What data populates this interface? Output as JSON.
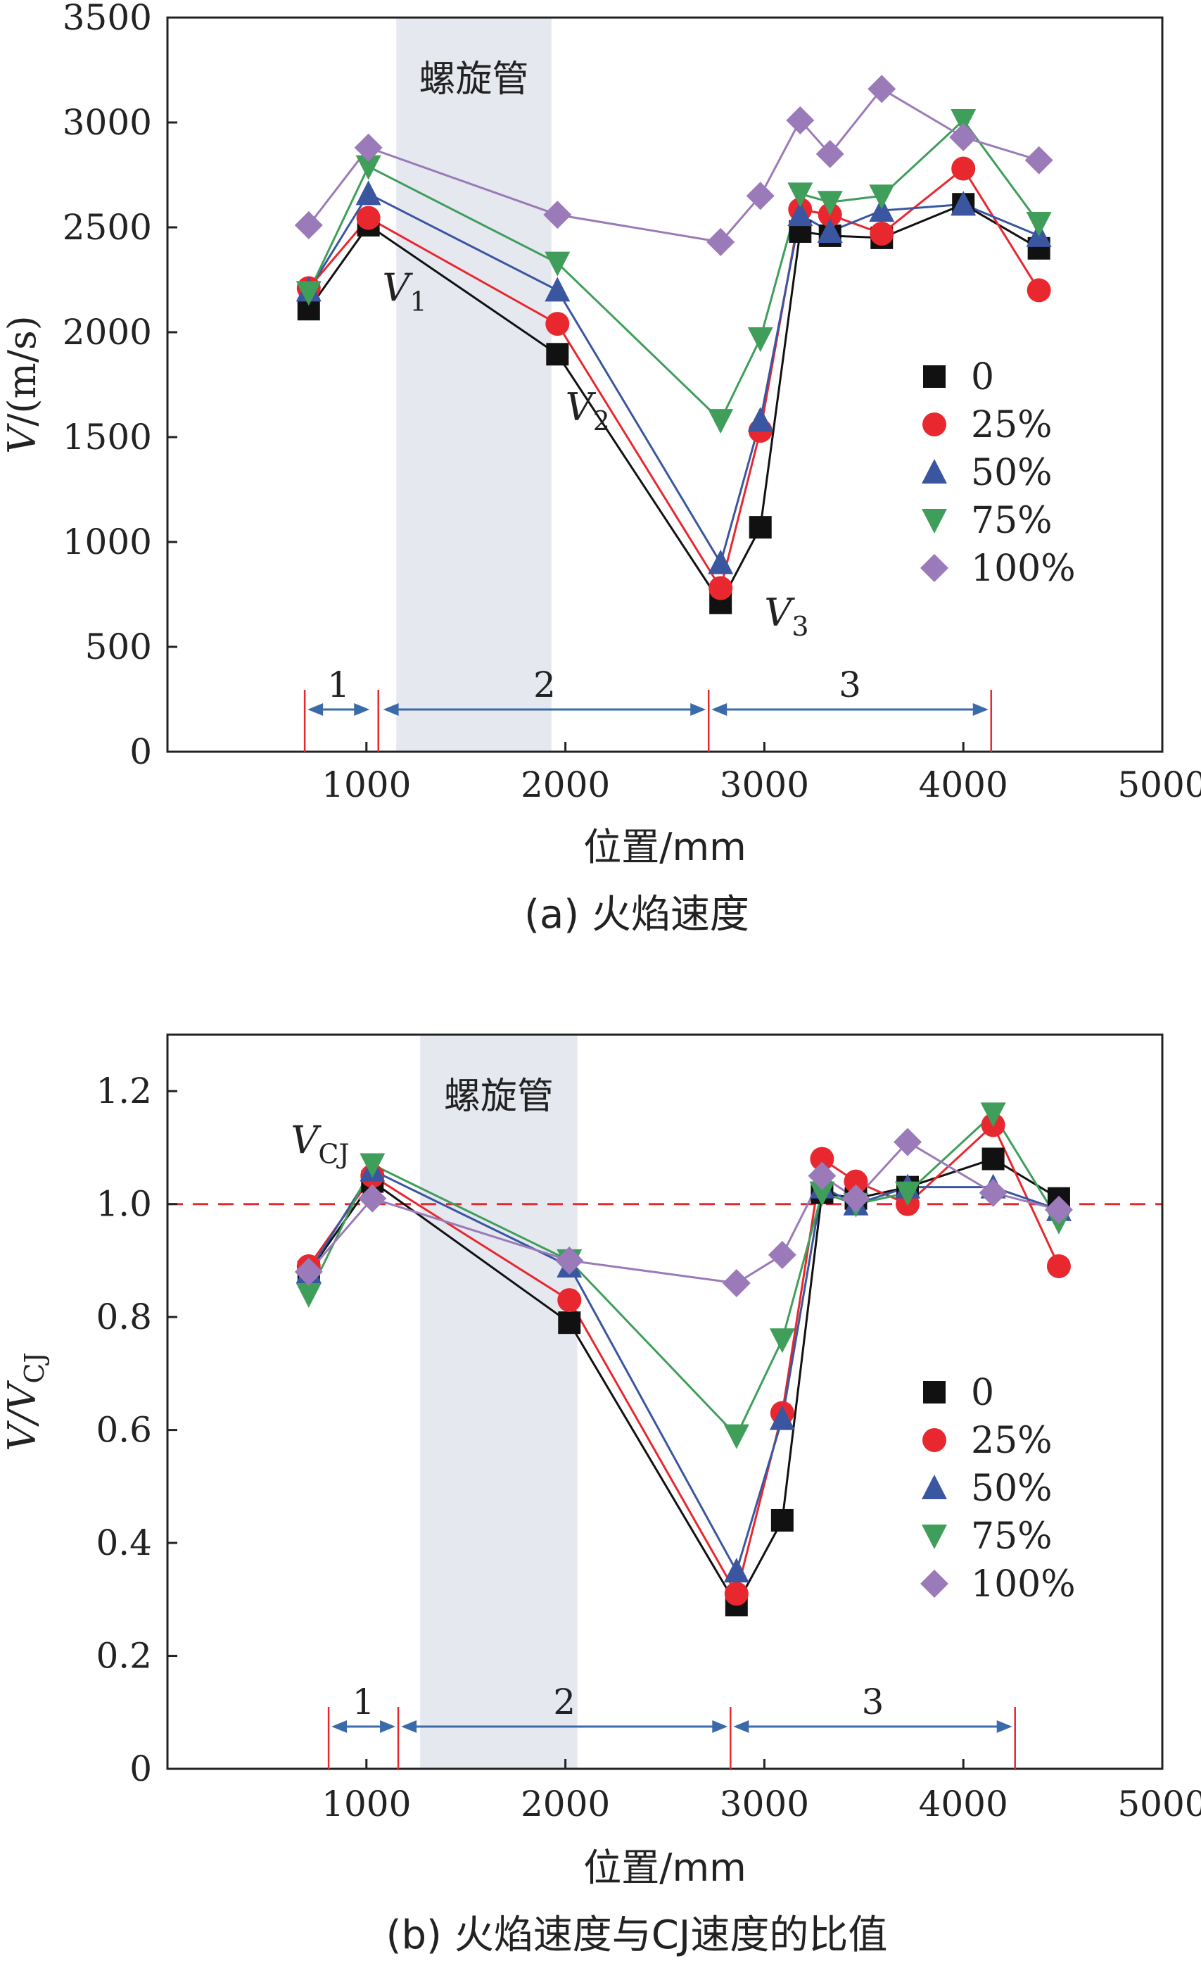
{
  "chart_data": [
    {
      "type": "line",
      "caption": "(a) 火焰速度",
      "xlabel": "位置/mm",
      "ylabel": "V/(m/s)",
      "ylabel_italic": "V",
      "ylabel_rest": "/(m/s)",
      "xlim": [
        0,
        5000
      ],
      "ylim": [
        0,
        3500
      ],
      "xticks": [
        "1000",
        "2000",
        "3000",
        "4000",
        "5000"
      ],
      "yticks": [
        "0",
        "500",
        "1000",
        "1500",
        "2000",
        "2500",
        "3000",
        "3500"
      ],
      "shaded_region": {
        "label": "螺旋管",
        "x_range": [
          1150,
          1930
        ]
      },
      "sections": [
        {
          "label": "1",
          "x_range": [
            690,
            1030
          ]
        },
        {
          "label": "2",
          "x_range": [
            1070,
            2720
          ]
        },
        {
          "label": "3",
          "x_range": [
            2720,
            4140
          ]
        }
      ],
      "section_markers": [
        690,
        1060,
        2720,
        4140
      ],
      "annotations": [
        {
          "base": "V",
          "sub": "1",
          "x": 1080,
          "y": 2150
        },
        {
          "base": "V",
          "sub": "2",
          "x": 2000,
          "y": 1580
        },
        {
          "base": "V",
          "sub": "3",
          "x": 3000,
          "y": 600
        }
      ],
      "legend_position": "center-right",
      "series": [
        {
          "name": "0",
          "color": "#111111",
          "marker": "square",
          "x": [
            710,
            1010,
            1960,
            2780,
            2980,
            3180,
            3330,
            3590,
            4000,
            4380
          ],
          "y": [
            2110,
            2510,
            1895,
            710,
            1070,
            2480,
            2460,
            2450,
            2610,
            2400
          ]
        },
        {
          "name": "25%",
          "color": "#e8282e",
          "marker": "circle",
          "x": [
            710,
            1010,
            1960,
            2780,
            2980,
            3180,
            3330,
            3590,
            4000,
            4380
          ],
          "y": [
            2210,
            2545,
            2040,
            780,
            1530,
            2585,
            2560,
            2470,
            2780,
            2200
          ]
        },
        {
          "name": "50%",
          "color": "#3a56a0",
          "marker": "triangle-up",
          "x": [
            710,
            1010,
            1960,
            2780,
            2980,
            3180,
            3330,
            3590,
            4000,
            4380
          ],
          "y": [
            2200,
            2660,
            2200,
            900,
            1580,
            2560,
            2480,
            2580,
            2610,
            2460
          ]
        },
        {
          "name": "75%",
          "color": "#3f9e5a",
          "marker": "triangle-down",
          "x": [
            710,
            1010,
            1960,
            2780,
            2980,
            3180,
            3330,
            3590,
            4000,
            4380
          ],
          "y": [
            2190,
            2790,
            2330,
            1580,
            1970,
            2660,
            2620,
            2650,
            3010,
            2520
          ]
        },
        {
          "name": "100%",
          "color": "#9a7ab8",
          "marker": "diamond",
          "x": [
            710,
            1010,
            1960,
            2780,
            2980,
            3180,
            3330,
            3590,
            4000,
            4380
          ],
          "y": [
            2510,
            2880,
            2560,
            2430,
            2650,
            3010,
            2850,
            3160,
            2930,
            2820
          ]
        }
      ]
    },
    {
      "type": "line",
      "caption": "(b) 火焰速度与CJ速度的比值",
      "xlabel": "位置/mm",
      "ylabel": "V/VCJ",
      "ylabel_italic": "V/V",
      "ylabel_sub": "CJ",
      "xlim": [
        0,
        5000
      ],
      "ylim": [
        0,
        1.3
      ],
      "xticks": [
        "1000",
        "2000",
        "3000",
        "4000",
        "5000"
      ],
      "yticks": [
        "0",
        "0.2",
        "0.4",
        "0.6",
        "0.8",
        "1.0",
        "1.2"
      ],
      "reference_line": {
        "y": 1.0,
        "style": "dashed",
        "color": "#e8282e"
      },
      "shaded_region": {
        "label": "螺旋管",
        "x_range": [
          1270,
          2060
        ]
      },
      "sections": [
        {
          "label": "1",
          "x_range": [
            810,
            1160
          ]
        },
        {
          "label": "2",
          "x_range": [
            1160,
            2830
          ]
        },
        {
          "label": "3",
          "x_range": [
            2830,
            4260
          ]
        }
      ],
      "section_markers": [
        810,
        1160,
        2830,
        4260
      ],
      "annotations": [
        {
          "base": "V",
          "sub": "CJ",
          "x": 620,
          "y": 1.09
        }
      ],
      "legend_position": "center-right",
      "series": [
        {
          "name": "0",
          "color": "#111111",
          "marker": "square",
          "x": [
            710,
            1030,
            2020,
            2860,
            3090,
            3290,
            3460,
            3720,
            4150,
            4480
          ],
          "y": [
            0.88,
            1.04,
            0.79,
            0.29,
            0.44,
            1.02,
            1.01,
            1.03,
            1.08,
            1.01
          ]
        },
        {
          "name": "25%",
          "color": "#e8282e",
          "marker": "circle",
          "x": [
            710,
            1030,
            2020,
            2860,
            3090,
            3290,
            3460,
            3720,
            4150,
            4480
          ],
          "y": [
            0.89,
            1.05,
            0.83,
            0.31,
            0.63,
            1.08,
            1.04,
            1.0,
            1.14,
            0.89
          ]
        },
        {
          "name": "50%",
          "color": "#3a56a0",
          "marker": "triangle-up",
          "x": [
            710,
            1030,
            2020,
            2860,
            3090,
            3290,
            3460,
            3720,
            4150,
            4480
          ],
          "y": [
            0.88,
            1.06,
            0.89,
            0.35,
            0.62,
            1.03,
            1.0,
            1.03,
            1.03,
            0.99
          ]
        },
        {
          "name": "75%",
          "color": "#3f9e5a",
          "marker": "triangle-down",
          "x": [
            710,
            1030,
            2020,
            2860,
            3090,
            3290,
            3460,
            3720,
            4150,
            4480
          ],
          "y": [
            0.84,
            1.07,
            0.9,
            0.59,
            0.76,
            1.02,
            1.0,
            1.02,
            1.16,
            0.97
          ]
        },
        {
          "name": "100%",
          "color": "#9a7ab8",
          "marker": "diamond",
          "x": [
            710,
            1030,
            2020,
            2860,
            3090,
            3290,
            3460,
            3720,
            4150,
            4480
          ],
          "y": [
            0.88,
            1.01,
            0.9,
            0.86,
            0.91,
            1.05,
            1.01,
            1.11,
            1.02,
            0.99
          ]
        }
      ]
    }
  ]
}
